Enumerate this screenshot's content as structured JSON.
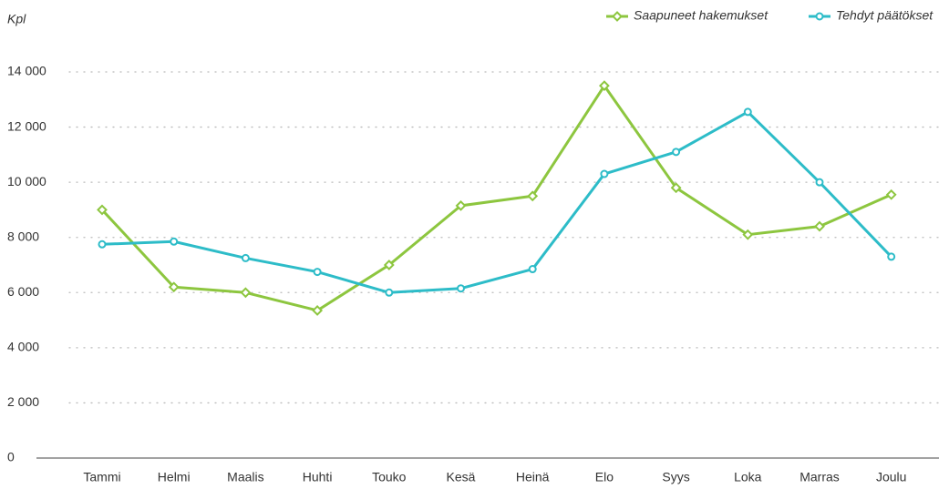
{
  "chart_data": {
    "type": "line",
    "y_label": "Kpl",
    "categories": [
      "Tammi",
      "Helmi",
      "Maalis",
      "Huhti",
      "Touko",
      "Kesä",
      "Heinä",
      "Elo",
      "Syys",
      "Loka",
      "Marras",
      "Joulu"
    ],
    "series": [
      {
        "name": "Saapuneet hakemukset",
        "color": "#8dc63f",
        "marker": "diamond",
        "values": [
          9000,
          6200,
          6000,
          5350,
          7000,
          9150,
          9500,
          13500,
          9800,
          8100,
          8400,
          9550
        ]
      },
      {
        "name": "Tehdyt päätökset",
        "color": "#2dbcc8",
        "marker": "circle",
        "values": [
          7750,
          7850,
          7250,
          6750,
          6000,
          6150,
          6850,
          10300,
          11100,
          12550,
          10000,
          7300
        ]
      }
    ],
    "ylim": [
      0,
      14000
    ],
    "yticks": [
      0,
      {
        "value": 2000,
        "label": "2 000"
      },
      {
        "value": 4000,
        "label": "4 000"
      },
      {
        "value": 6000,
        "label": "6 000"
      },
      {
        "value": 8000,
        "label": "8 000"
      },
      {
        "value": 10000,
        "label": "10 000"
      },
      {
        "value": 12000,
        "label": "12 000"
      },
      {
        "value": 14000,
        "label": "14 000"
      }
    ],
    "grid": true,
    "legend": "top-right"
  }
}
